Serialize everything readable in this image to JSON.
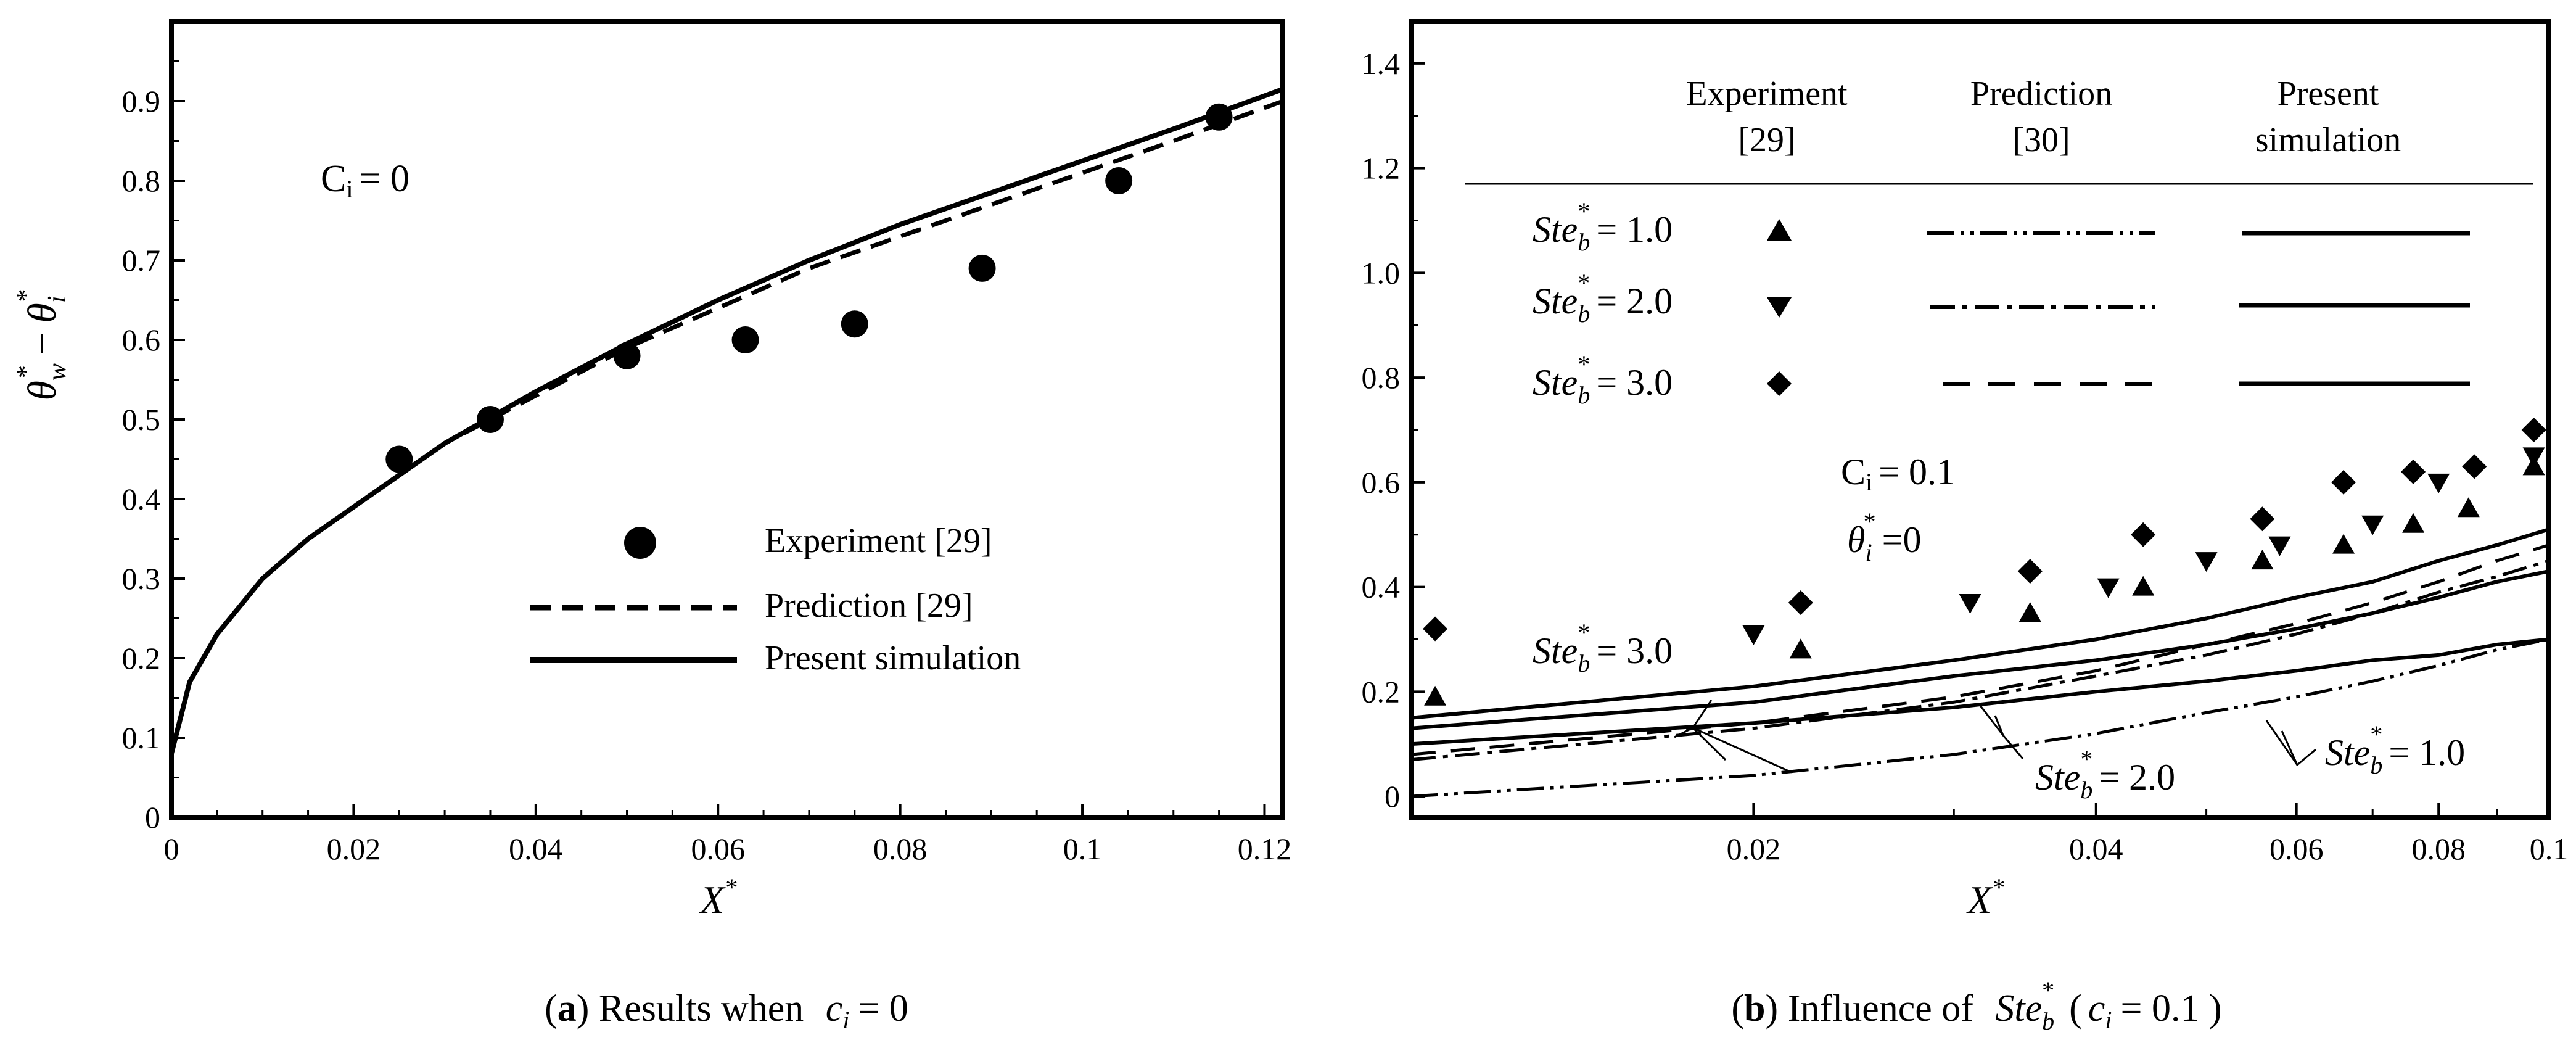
{
  "chart_data": [
    {
      "type": "line",
      "panel": "a",
      "caption": {
        "label": "a",
        "text": "Results when",
        "var": "c",
        "sub": "i",
        "rest": "= 0"
      },
      "annotation": {
        "var": "C",
        "sub": "i",
        "rest": "= 0"
      },
      "xlabel": "X",
      "ylabel": "θw* − θi*",
      "xlim": [
        0,
        0.122
      ],
      "ylim": [
        0,
        1.0
      ],
      "xticks": [
        "0",
        "0.02",
        "0.04",
        "0.06",
        "0.08",
        "0.1",
        "0.12"
      ],
      "yticks": [
        "0",
        "0.1",
        "0.2",
        "0.3",
        "0.4",
        "0.5",
        "0.6",
        "0.7",
        "0.8",
        "0.9"
      ],
      "legend": [
        {
          "label": "Experiment [29]",
          "style": "circle"
        },
        {
          "label": "Prediction [29]",
          "style": "dashed"
        },
        {
          "label": "Present simulation",
          "style": "solid"
        }
      ],
      "series": [
        {
          "name": "Experiment [29]",
          "style": "circle",
          "x": [
            0.025,
            0.035,
            0.05,
            0.063,
            0.075,
            0.089,
            0.104,
            0.115
          ],
          "y": [
            0.45,
            0.5,
            0.58,
            0.6,
            0.62,
            0.69,
            0.8,
            0.88
          ]
        },
        {
          "name": "Prediction [29]",
          "style": "dashed",
          "x": [
            0.0,
            0.002,
            0.005,
            0.01,
            0.015,
            0.02,
            0.025,
            0.03,
            0.04,
            0.05,
            0.06,
            0.07,
            0.08,
            0.09,
            0.1,
            0.11,
            0.122
          ],
          "y": [
            0.08,
            0.17,
            0.23,
            0.3,
            0.35,
            0.39,
            0.43,
            0.47,
            0.53,
            0.59,
            0.64,
            0.69,
            0.73,
            0.77,
            0.81,
            0.85,
            0.9
          ]
        },
        {
          "name": "Present simulation",
          "style": "solid",
          "x": [
            0.0,
            0.002,
            0.005,
            0.01,
            0.015,
            0.02,
            0.025,
            0.03,
            0.04,
            0.05,
            0.06,
            0.07,
            0.08,
            0.09,
            0.1,
            0.11,
            0.122
          ],
          "y": [
            0.08,
            0.17,
            0.23,
            0.3,
            0.35,
            0.39,
            0.43,
            0.47,
            0.535,
            0.595,
            0.65,
            0.7,
            0.745,
            0.785,
            0.825,
            0.865,
            0.915
          ]
        }
      ]
    },
    {
      "type": "line",
      "panel": "b",
      "caption": {
        "label": "b",
        "text": "Influence of",
        "var": "Ste",
        "sub": "b",
        "open": "(",
        "cvar": "c",
        "csub": "i",
        "rest": "= 0.1 )"
      },
      "annotations": {
        "ci": {
          "var": "C",
          "sub": "i",
          "rest": "= 0.1"
        },
        "theta": {
          "var": "θ",
          "sub": "i",
          "rest": "=0"
        }
      },
      "xlabel": "X",
      "ylabel": "",
      "xscale": "log",
      "xlim": [
        0.01,
        0.1
      ],
      "ylim": [
        -0.04,
        1.48
      ],
      "xticks": [
        "0.02",
        "0.04",
        "0.06",
        "0.08",
        "0.1"
      ],
      "yticks": [
        "0",
        "0.2",
        "0.4",
        "0.6",
        "0.8",
        "1.0",
        "1.2",
        "1.4"
      ],
      "legend_headers": [
        {
          "line1": "Experiment",
          "line2": "[29]"
        },
        {
          "line1": "Prediction",
          "line2": "[30]"
        },
        {
          "line1": "Present",
          "line2": "simulation"
        }
      ],
      "legend_rows": [
        {
          "label": "Ste",
          "sub": "b",
          "value": "= 1.0",
          "marker": "triangle-up",
          "pred_style": "dash-dot-dot"
        },
        {
          "label": "Ste",
          "sub": "b",
          "value": "= 2.0",
          "marker": "triangle-down",
          "pred_style": "dash-dot"
        },
        {
          "label": "Ste",
          "sub": "b",
          "value": "= 3.0",
          "marker": "diamond",
          "pred_style": "dashed"
        }
      ],
      "curve_labels": [
        {
          "label": "Ste",
          "sub": "b",
          "value": "= 3.0"
        },
        {
          "label": "Ste",
          "sub": "b",
          "value": "= 2.0"
        },
        {
          "label": "Ste",
          "sub": "b",
          "value": "= 1.0"
        }
      ],
      "series": [
        {
          "name": "Experiment Ste*=1.0",
          "marker": "triangle-up",
          "x": [
            0.0105,
            0.022,
            0.035,
            0.044,
            0.056,
            0.066,
            0.076,
            0.085,
            0.097
          ],
          "y": [
            0.19,
            0.28,
            0.35,
            0.4,
            0.45,
            0.48,
            0.52,
            0.55,
            0.63
          ]
        },
        {
          "name": "Experiment Ste*=2.0",
          "marker": "triangle-down",
          "x": [
            0.02,
            0.031,
            0.041,
            0.05,
            0.058,
            0.07,
            0.08,
            0.097
          ],
          "y": [
            0.31,
            0.37,
            0.4,
            0.45,
            0.48,
            0.52,
            0.6,
            0.65
          ]
        },
        {
          "name": "Experiment Ste*=3.0",
          "marker": "diamond",
          "x": [
            0.0105,
            0.022,
            0.035,
            0.044,
            0.056,
            0.066,
            0.076,
            0.086,
            0.097
          ],
          "y": [
            0.32,
            0.37,
            0.43,
            0.5,
            0.53,
            0.6,
            0.62,
            0.63,
            0.7
          ]
        },
        {
          "name": "Prediction Ste*=1.0",
          "style": "dash-dot-dot",
          "x": [
            0.01,
            0.02,
            0.03,
            0.04,
            0.05,
            0.06,
            0.07,
            0.08,
            0.09,
            0.1
          ],
          "y": [
            0.0,
            0.04,
            0.08,
            0.12,
            0.16,
            0.19,
            0.22,
            0.25,
            0.28,
            0.3
          ]
        },
        {
          "name": "Prediction Ste*=2.0",
          "style": "dash-dot",
          "x": [
            0.01,
            0.02,
            0.03,
            0.04,
            0.05,
            0.06,
            0.07,
            0.08,
            0.09,
            0.1
          ],
          "y": [
            0.07,
            0.13,
            0.18,
            0.23,
            0.27,
            0.31,
            0.35,
            0.39,
            0.42,
            0.45
          ]
        },
        {
          "name": "Prediction Ste*=3.0",
          "style": "dashed",
          "x": [
            0.01,
            0.02,
            0.03,
            0.04,
            0.05,
            0.06,
            0.07,
            0.08,
            0.09,
            0.1
          ],
          "y": [
            0.08,
            0.14,
            0.19,
            0.24,
            0.29,
            0.33,
            0.37,
            0.41,
            0.45,
            0.48
          ]
        },
        {
          "name": "Simulation Ste*=1.0",
          "style": "solid",
          "x": [
            0.01,
            0.02,
            0.03,
            0.04,
            0.05,
            0.06,
            0.07,
            0.08,
            0.09,
            0.1
          ],
          "y": [
            0.1,
            0.14,
            0.17,
            0.2,
            0.22,
            0.24,
            0.26,
            0.27,
            0.29,
            0.3
          ]
        },
        {
          "name": "Simulation Ste*=2.0",
          "style": "solid",
          "x": [
            0.01,
            0.02,
            0.03,
            0.04,
            0.05,
            0.06,
            0.07,
            0.08,
            0.09,
            0.1
          ],
          "y": [
            0.13,
            0.18,
            0.23,
            0.26,
            0.29,
            0.32,
            0.35,
            0.38,
            0.41,
            0.43
          ]
        },
        {
          "name": "Simulation Ste*=3.0",
          "style": "solid",
          "x": [
            0.01,
            0.02,
            0.03,
            0.04,
            0.05,
            0.06,
            0.07,
            0.08,
            0.09,
            0.1
          ],
          "y": [
            0.15,
            0.21,
            0.26,
            0.3,
            0.34,
            0.38,
            0.41,
            0.45,
            0.48,
            0.51
          ]
        }
      ]
    }
  ]
}
